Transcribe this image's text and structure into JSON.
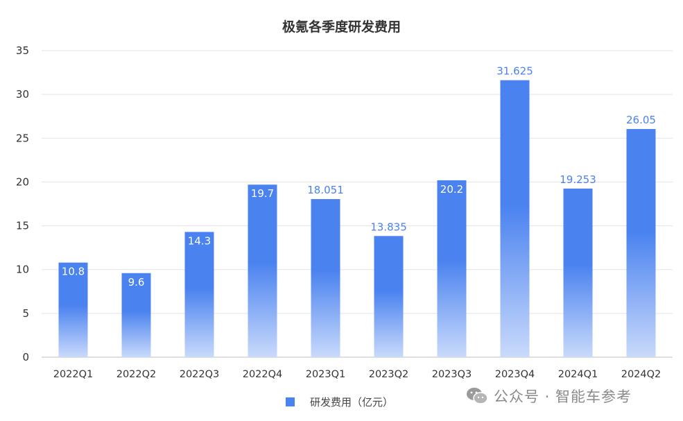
{
  "chart_data": {
    "type": "bar",
    "title": "极氪各季度研发费用",
    "categories": [
      "2022Q1",
      "2022Q2",
      "2022Q3",
      "2022Q4",
      "2023Q1",
      "2023Q2",
      "2023Q3",
      "2023Q4",
      "2024Q1",
      "2024Q2"
    ],
    "series": [
      {
        "name": "研发费用（亿元）",
        "values": [
          10.8,
          9.6,
          14.3,
          19.7,
          18.051,
          13.835,
          20.2,
          31.625,
          19.253,
          26.05
        ],
        "labels": [
          "10.8",
          "9.6",
          "14.3",
          "19.7",
          "18.051",
          "13.835",
          "20.2",
          "31.625",
          "19.253",
          "26.05"
        ]
      }
    ],
    "ylim": [
      0,
      35
    ],
    "yticks": [
      0,
      5,
      10,
      15,
      20,
      25,
      30,
      35
    ],
    "grid": true,
    "legend_position": "bottom-center",
    "colors": {
      "bar_top": "#4a82ef",
      "bar_bottom": "#c9dafb",
      "label_outside": "#4a82ef",
      "label_inside": "#ffffff",
      "grid": "#e3e3e3",
      "axis_text": "#333333"
    }
  },
  "watermark": {
    "text": "公众号 · 智能车参考",
    "icon": "wechat-icon"
  }
}
